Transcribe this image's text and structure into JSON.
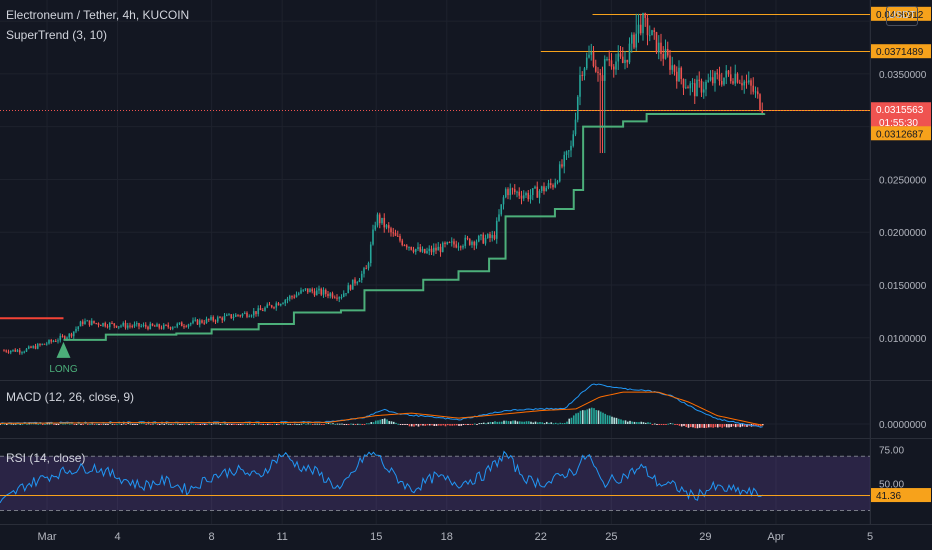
{
  "header": {
    "title": "Electroneum / Tether, 4h, KUCOIN",
    "currency": "USDT",
    "indicators": {
      "supertrend": "SuperTrend (3, 10)",
      "macd": "MACD (12, 26, close, 9)",
      "rsi": "RSI (14, close)"
    }
  },
  "colors": {
    "background": "#131722",
    "up": "#26a69a",
    "down": "#ef5350",
    "supertrend_up": "#4caf7a",
    "supertrend_down": "#f44336",
    "level_line": "#f7a21b",
    "macd_line": "#2196f3",
    "signal_line": "#ff6d00",
    "rsi_line": "#2196f3"
  },
  "chart_data": [
    {
      "type": "candlestick",
      "title": "Electroneum / Tether, 4h, KUCOIN",
      "ylim": [
        0.006,
        0.042
      ],
      "y_ticks": [
        "0.0100000",
        "0.0150000",
        "0.0200000",
        "0.0250000",
        "0.0350000"
      ],
      "x_ticks": [
        "Mar",
        "4",
        "8",
        "11",
        "15",
        "18",
        "22",
        "25",
        "29",
        "Apr",
        "5"
      ],
      "x_range_days": [
        -1.0,
        36.0
      ],
      "x_tick_days": [
        1,
        4,
        8,
        11,
        15,
        18,
        22,
        25,
        29,
        32,
        36
      ],
      "price_labels": [
        {
          "value": 0.0406912,
          "label": "0.0406912",
          "kind": "level"
        },
        {
          "value": 0.0371489,
          "label": "0.0371489",
          "kind": "level"
        },
        {
          "value": 0.0315563,
          "label": "0.0315563",
          "kind": "last",
          "countdown": "01:55:30"
        },
        {
          "value": 0.0312687,
          "label": "0.0312687",
          "kind": "supertrend"
        }
      ],
      "horizontal_levels": [
        {
          "value": 0.0406912,
          "from_day": 24.2
        },
        {
          "value": 0.0371489,
          "from_day": 22.0
        },
        {
          "value": 0.0315563,
          "from_day": 22.0
        }
      ],
      "close_anchors": [
        [
          0.0,
          0.0088
        ],
        [
          1.0,
          0.0095
        ],
        [
          2.0,
          0.0103
        ],
        [
          2.5,
          0.0115
        ],
        [
          4.0,
          0.0112
        ],
        [
          6.0,
          0.011
        ],
        [
          8.0,
          0.0117
        ],
        [
          10.0,
          0.0125
        ],
        [
          11.0,
          0.0135
        ],
        [
          12.0,
          0.0145
        ],
        [
          13.5,
          0.014
        ],
        [
          14.6,
          0.0165
        ],
        [
          15.0,
          0.0215
        ],
        [
          15.8,
          0.0195
        ],
        [
          17.0,
          0.018
        ],
        [
          18.5,
          0.019
        ],
        [
          20.0,
          0.0195
        ],
        [
          20.5,
          0.024
        ],
        [
          21.5,
          0.0235
        ],
        [
          22.5,
          0.0245
        ],
        [
          23.3,
          0.028
        ],
        [
          23.7,
          0.0355
        ],
        [
          24.2,
          0.037
        ],
        [
          24.5,
          0.034
        ],
        [
          24.8,
          0.0365
        ],
        [
          25.5,
          0.036
        ],
        [
          26.3,
          0.04
        ],
        [
          27.0,
          0.0375
        ],
        [
          28.0,
          0.0345
        ],
        [
          28.5,
          0.0335
        ],
        [
          29.5,
          0.0345
        ],
        [
          30.3,
          0.035
        ],
        [
          31.0,
          0.0335
        ],
        [
          31.5,
          0.0316
        ]
      ],
      "supertrend": [
        {
          "day": -1.0,
          "value": 0.01185,
          "dir": "down"
        },
        {
          "day": 1.7,
          "value": 0.01185,
          "dir": "down"
        },
        {
          "day": 1.7,
          "value": 0.0098,
          "dir": "up"
        },
        {
          "day": 3.5,
          "value": 0.0103,
          "dir": "up"
        },
        {
          "day": 6.5,
          "value": 0.0104,
          "dir": "up"
        },
        {
          "day": 8.0,
          "value": 0.0108,
          "dir": "up"
        },
        {
          "day": 10.0,
          "value": 0.0113,
          "dir": "up"
        },
        {
          "day": 11.5,
          "value": 0.0124,
          "dir": "up"
        },
        {
          "day": 13.5,
          "value": 0.0126,
          "dir": "up"
        },
        {
          "day": 14.5,
          "value": 0.0145,
          "dir": "up"
        },
        {
          "day": 17.0,
          "value": 0.0155,
          "dir": "up"
        },
        {
          "day": 18.5,
          "value": 0.0163,
          "dir": "up"
        },
        {
          "day": 19.8,
          "value": 0.0175,
          "dir": "up"
        },
        {
          "day": 20.5,
          "value": 0.0215,
          "dir": "up"
        },
        {
          "day": 22.6,
          "value": 0.0222,
          "dir": "up"
        },
        {
          "day": 23.4,
          "value": 0.024,
          "dir": "up"
        },
        {
          "day": 23.8,
          "value": 0.03,
          "dir": "up"
        },
        {
          "day": 25.5,
          "value": 0.0305,
          "dir": "up"
        },
        {
          "day": 26.5,
          "value": 0.0312,
          "dir": "up"
        },
        {
          "day": 31.5,
          "value": 0.0312687,
          "dir": "up"
        }
      ],
      "signal": {
        "day": 1.7,
        "value": 0.0098,
        "label": "LONG"
      }
    },
    {
      "type": "line",
      "title": "MACD (12, 26, close, 9)",
      "y_ticks": [
        "0.0000000"
      ],
      "macd_anchors": [
        [
          -1,
          5e-05
        ],
        [
          4,
          0.0001
        ],
        [
          8,
          8e-05
        ],
        [
          13,
          0.00012
        ],
        [
          14.5,
          0.0004
        ],
        [
          15.3,
          0.00085
        ],
        [
          16,
          0.0006
        ],
        [
          18.5,
          0.00025
        ],
        [
          20.5,
          0.0008
        ],
        [
          22,
          0.0009
        ],
        [
          23,
          0.0009
        ],
        [
          23.7,
          0.0018
        ],
        [
          24.2,
          0.0024
        ],
        [
          25.5,
          0.0021
        ],
        [
          26.5,
          0.002
        ],
        [
          27.5,
          0.0017
        ],
        [
          28.7,
          0.0008
        ],
        [
          29.5,
          0.0003
        ],
        [
          31.5,
          -0.0002
        ]
      ],
      "signal_anchors": [
        [
          -1,
          4e-05
        ],
        [
          4,
          8e-05
        ],
        [
          8,
          8e-05
        ],
        [
          13,
          0.0001
        ],
        [
          15,
          0.0005
        ],
        [
          16.5,
          0.00065
        ],
        [
          18.5,
          0.00035
        ],
        [
          20.5,
          0.0006
        ],
        [
          22,
          0.0008
        ],
        [
          23.5,
          0.0009
        ],
        [
          24.5,
          0.0016
        ],
        [
          25.5,
          0.0019
        ],
        [
          27,
          0.0019
        ],
        [
          28.3,
          0.0013
        ],
        [
          29.5,
          0.0005
        ],
        [
          31.5,
          -0.0001
        ]
      ]
    },
    {
      "type": "line",
      "title": "RSI (14, close)",
      "ylim": [
        20,
        82
      ],
      "y_ticks": [
        "75.00",
        "50.00"
      ],
      "upper_band": 70,
      "lower_band": 30,
      "last_value": 41.36,
      "last_label": "41.36",
      "rsi_anchors": [
        [
          -1,
          35
        ],
        [
          0,
          48
        ],
        [
          1,
          55
        ],
        [
          2,
          60
        ],
        [
          3,
          62
        ],
        [
          4,
          55
        ],
        [
          5,
          48
        ],
        [
          6,
          52
        ],
        [
          7,
          45
        ],
        [
          8,
          55
        ],
        [
          9,
          60
        ],
        [
          10,
          55
        ],
        [
          11,
          72
        ],
        [
          11.7,
          63
        ],
        [
          12.5,
          58
        ],
        [
          13.5,
          45
        ],
        [
          14.5,
          70
        ],
        [
          15,
          72
        ],
        [
          15.5,
          60
        ],
        [
          16.5,
          45
        ],
        [
          17.5,
          55
        ],
        [
          18.5,
          50
        ],
        [
          19.5,
          55
        ],
        [
          20.5,
          72
        ],
        [
          21,
          60
        ],
        [
          21.5,
          52
        ],
        [
          22.3,
          50
        ],
        [
          23,
          57
        ],
        [
          23.5,
          60
        ],
        [
          24,
          72
        ],
        [
          24.6,
          50
        ],
        [
          25.5,
          55
        ],
        [
          26.3,
          62
        ],
        [
          27,
          50
        ],
        [
          27.7,
          48
        ],
        [
          28.5,
          40
        ],
        [
          29.3,
          47
        ],
        [
          30.1,
          45
        ],
        [
          30.6,
          44
        ],
        [
          31.5,
          41.36
        ]
      ]
    }
  ]
}
